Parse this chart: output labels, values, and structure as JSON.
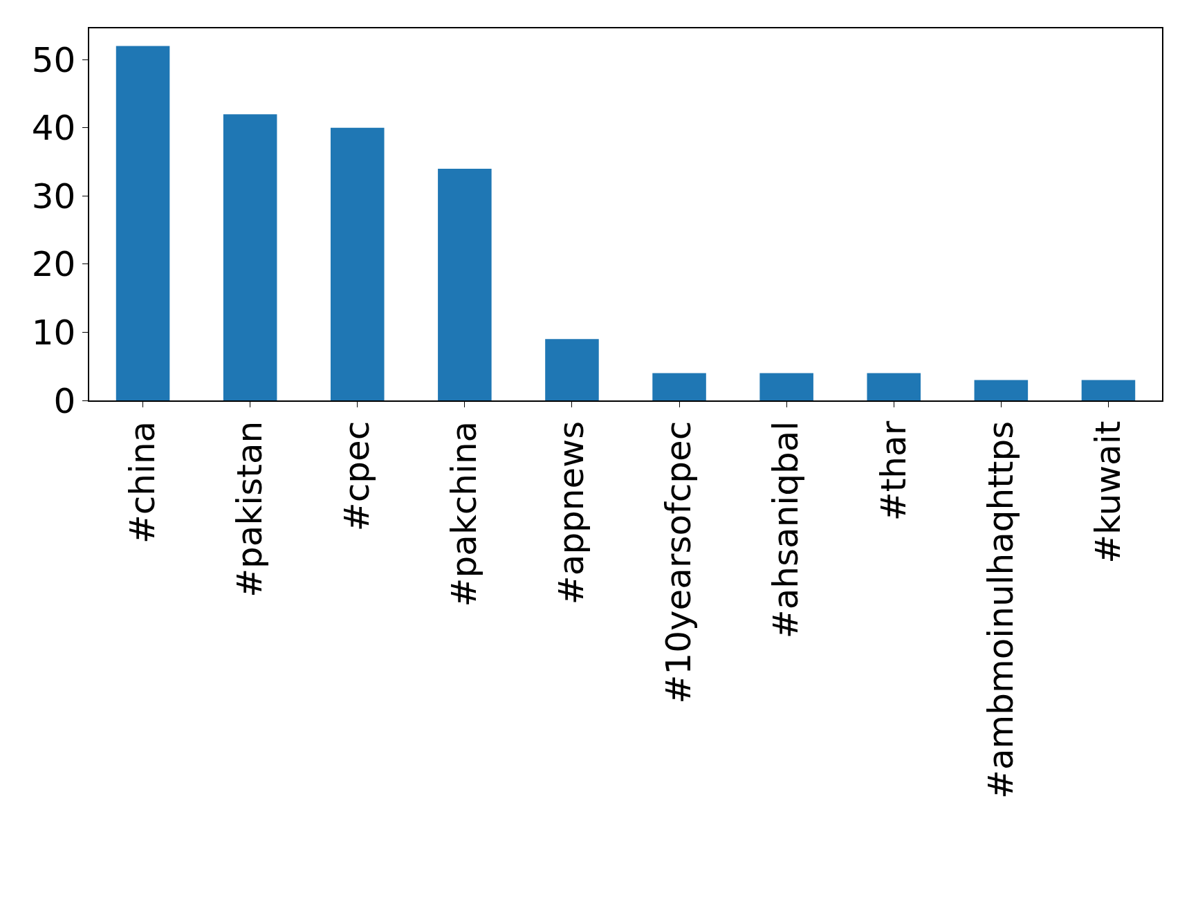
{
  "chart_data": {
    "type": "bar",
    "categories": [
      "#china",
      "#pakistan",
      "#cpec",
      "#pakchina",
      "#appnews",
      "#10yearsofcpec",
      "#ahsaniqbal",
      "#thar",
      "#ambmoinulhaqhttps",
      "#kuwait"
    ],
    "values": [
      52,
      42,
      40,
      34,
      9,
      4,
      4,
      4,
      3,
      3
    ],
    "color": "#1f77b4",
    "ylim": [
      0,
      54.6
    ],
    "yticks": [
      0,
      10,
      20,
      30,
      40,
      50
    ],
    "grid": false,
    "legend": false
  }
}
